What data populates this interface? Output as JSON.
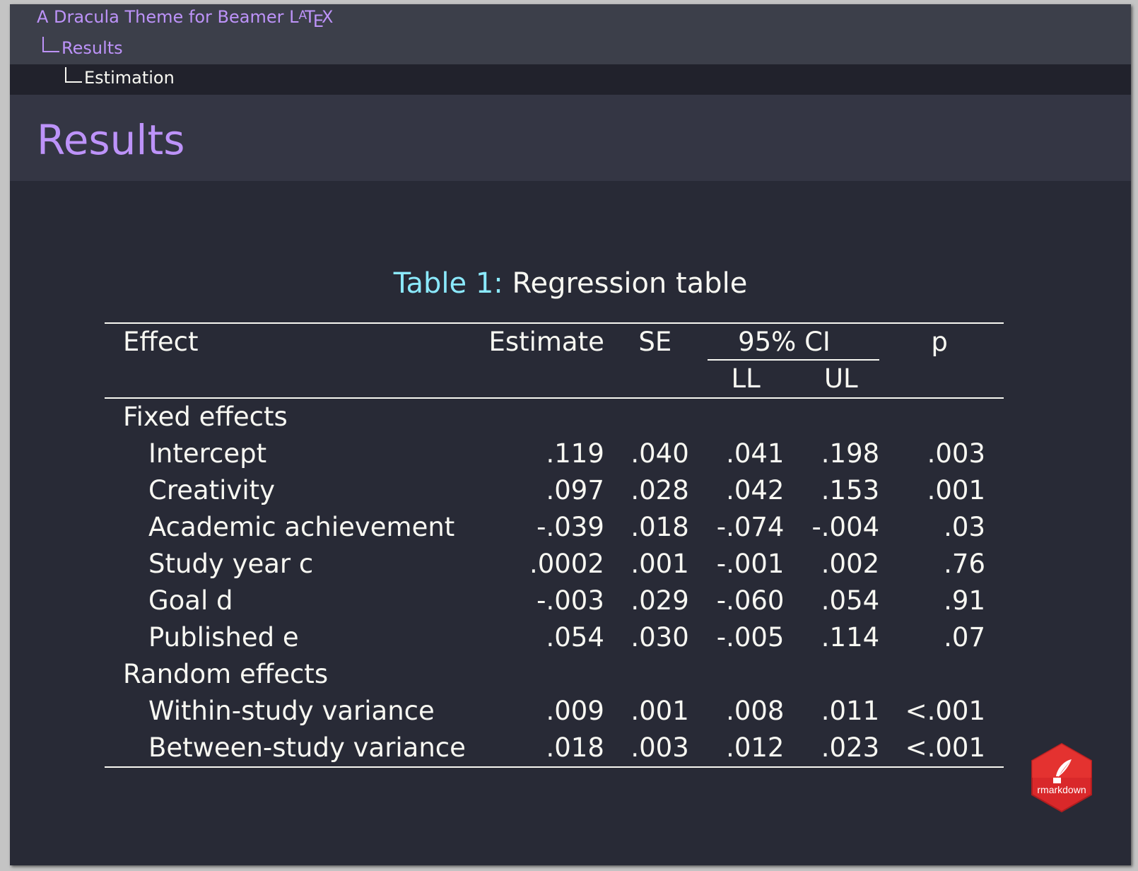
{
  "header": {
    "presentation_title": "A Dracula Theme for Beamer",
    "latex_logo": {
      "L": "L",
      "A": "A",
      "T": "T",
      "E": "E",
      "X": "X"
    },
    "section": "Results",
    "subsection": "Estimation"
  },
  "frame": {
    "title": "Results"
  },
  "table": {
    "caption_label": "Table 1:",
    "caption_text": "Regression table",
    "headers": {
      "effect": "Effect",
      "estimate": "Estimate",
      "se": "SE",
      "ci": "95% CI",
      "ll": "LL",
      "ul": "UL",
      "p": "p"
    },
    "groups": {
      "fixed": "Fixed effects",
      "random": "Random effects"
    },
    "rows": [
      {
        "effect": "Intercept",
        "estimate": ".119",
        "se": ".040",
        "ll": ".041",
        "ul": ".198",
        "p": ".003"
      },
      {
        "effect": "Creativity",
        "estimate": ".097",
        "se": ".028",
        "ll": ".042",
        "ul": ".153",
        "p": ".001"
      },
      {
        "effect": "Academic achievement",
        "estimate": "-.039",
        "se": ".018",
        "ll": "-.074",
        "ul": "-.004",
        "p": ".03"
      },
      {
        "effect": "Study year c",
        "estimate": ".0002",
        "se": ".001",
        "ll": "-.001",
        "ul": ".002",
        "p": ".76"
      },
      {
        "effect": "Goal d",
        "estimate": "-.003",
        "se": ".029",
        "ll": "-.060",
        "ul": ".054",
        "p": ".91"
      },
      {
        "effect": "Published e",
        "estimate": ".054",
        "se": ".030",
        "ll": "-.005",
        "ul": ".114",
        "p": ".07"
      },
      {
        "effect": "Within-study variance",
        "estimate": ".009",
        "se": ".001",
        "ll": ".008",
        "ul": ".011",
        "p": "<.001"
      },
      {
        "effect": "Between-study variance",
        "estimate": ".018",
        "se": ".003",
        "ll": ".012",
        "ul": ".023",
        "p": "<.001"
      }
    ]
  },
  "badge": {
    "label": "rmarkdown",
    "icon": "quill-pen-icon",
    "color": "#e8322f"
  },
  "colors": {
    "background": "#282a36",
    "purple": "#bd93f9",
    "cyan": "#8be9fd",
    "foreground": "#f8f8f2"
  }
}
